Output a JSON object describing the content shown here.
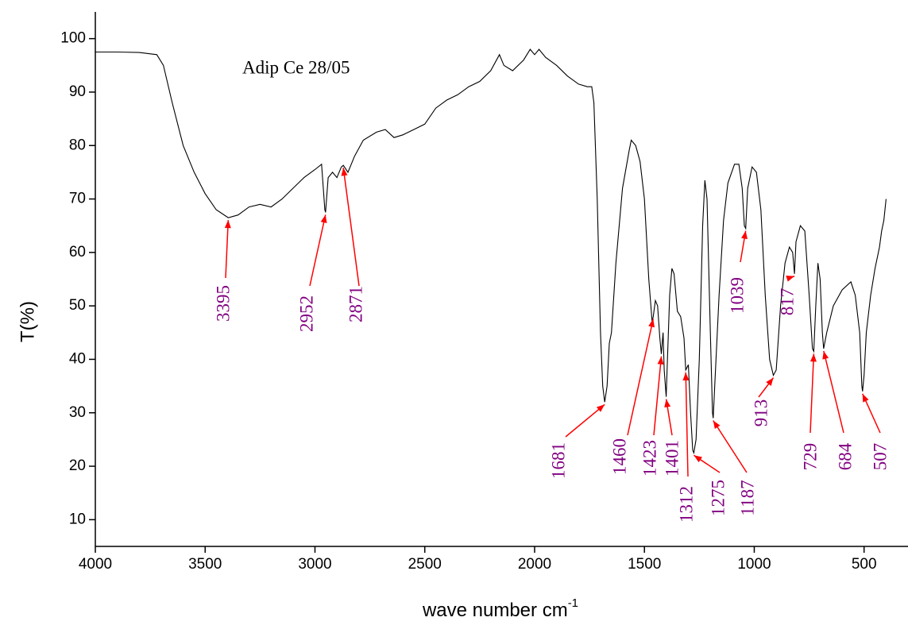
{
  "chart_data": {
    "type": "line",
    "title": "Adip Ce 28/05",
    "x_label": "wave number cm",
    "x_label_sup": "-1",
    "y_label": "T(%)",
    "color": "#000000",
    "xlim": [
      4000,
      300
    ],
    "ylim": [
      5,
      105
    ],
    "xticks": [
      4000,
      3500,
      3000,
      2500,
      2000,
      1500,
      1000,
      500
    ],
    "yticks": [
      10,
      20,
      30,
      40,
      50,
      60,
      70,
      80,
      90,
      100
    ],
    "x": [
      4000,
      3900,
      3800,
      3720,
      3690,
      3650,
      3600,
      3550,
      3500,
      3450,
      3395,
      3350,
      3300,
      3250,
      3200,
      3150,
      3100,
      3050,
      3000,
      2970,
      2955,
      2952,
      2940,
      2920,
      2900,
      2880,
      2871,
      2850,
      2820,
      2780,
      2720,
      2680,
      2640,
      2600,
      2550,
      2500,
      2450,
      2400,
      2350,
      2300,
      2250,
      2200,
      2160,
      2140,
      2100,
      2050,
      2020,
      2000,
      1980,
      1950,
      1900,
      1850,
      1800,
      1760,
      1740,
      1730,
      1715,
      1700,
      1690,
      1681,
      1670,
      1660,
      1650,
      1630,
      1600,
      1570,
      1560,
      1540,
      1520,
      1500,
      1480,
      1465,
      1460,
      1450,
      1440,
      1430,
      1423,
      1415,
      1410,
      1401,
      1395,
      1385,
      1375,
      1365,
      1350,
      1335,
      1320,
      1312,
      1300,
      1290,
      1280,
      1275,
      1265,
      1250,
      1235,
      1225,
      1215,
      1200,
      1190,
      1187,
      1180,
      1160,
      1140,
      1120,
      1090,
      1070,
      1055,
      1045,
      1039,
      1030,
      1010,
      990,
      970,
      950,
      930,
      913,
      900,
      880,
      860,
      840,
      825,
      817,
      810,
      790,
      770,
      750,
      735,
      729,
      720,
      710,
      700,
      690,
      684,
      670,
      640,
      600,
      560,
      540,
      520,
      510,
      507,
      500,
      490,
      470,
      450,
      430,
      420,
      410,
      400
    ],
    "values": [
      97.5,
      97.5,
      97.4,
      97,
      95,
      88,
      80,
      75,
      71,
      68,
      66.5,
      67,
      68.5,
      69,
      68.5,
      70,
      72,
      74,
      75.5,
      76.5,
      68,
      67.5,
      74,
      75,
      74,
      76,
      76.3,
      75,
      78,
      81,
      82.5,
      83,
      81.5,
      82,
      83,
      84,
      87,
      88.5,
      89.5,
      91,
      92,
      94,
      97,
      95,
      94,
      96,
      98,
      97,
      98,
      96.5,
      95,
      93,
      91.5,
      91,
      91,
      88,
      70,
      45,
      35,
      32,
      35,
      43,
      45,
      58,
      72,
      79,
      81,
      80,
      77,
      70,
      55,
      47,
      48,
      51,
      50,
      44,
      41,
      45,
      38,
      33,
      40,
      52,
      57,
      56,
      49,
      48,
      44,
      38,
      39,
      30,
      23,
      22.5,
      25,
      40,
      65,
      73.5,
      70,
      45,
      30,
      29,
      35,
      52,
      66,
      73,
      76.5,
      76.5,
      72,
      65,
      64.5,
      72,
      76,
      75,
      68,
      52,
      40,
      37,
      38,
      50,
      58,
      61,
      60,
      56,
      62,
      65,
      64,
      52,
      42,
      41.5,
      50,
      58,
      55,
      45,
      42,
      45,
      50,
      53,
      54.5,
      52,
      45,
      35,
      34,
      37,
      45,
      52,
      57,
      61,
      64,
      66,
      70
    ],
    "peaks": {
      "x": [
        3395,
        2952,
        2871,
        1681,
        1460,
        1423,
        1401,
        1312,
        1275,
        1187,
        1039,
        913,
        817,
        729,
        684,
        507
      ],
      "y": [
        66.5,
        67.5,
        76.3,
        32,
        48,
        41,
        33,
        38,
        22.5,
        29,
        64.5,
        37,
        56,
        41.5,
        42,
        34
      ]
    }
  }
}
